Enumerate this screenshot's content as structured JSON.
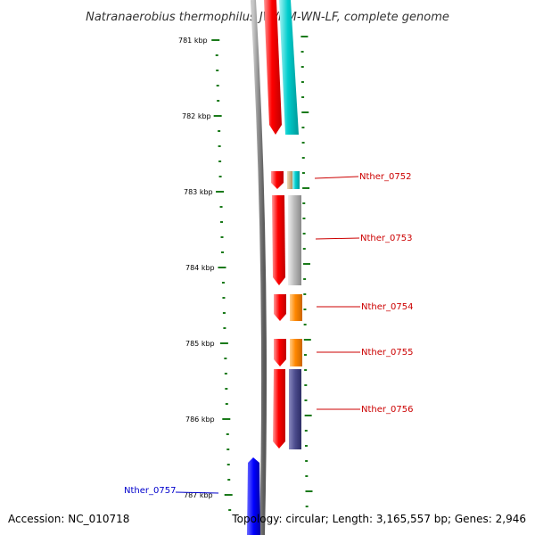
{
  "title": "Natranaerobius thermophilus JW/NM-WN-LF, complete genome",
  "scale_labels": [
    "781 kbp",
    "782 kbp",
    "783 kbp",
    "784 kbp",
    "785 kbp",
    "786 kbp",
    "787 kbp"
  ],
  "genes": [
    {
      "name": "Nther_0752",
      "strand": "forward"
    },
    {
      "name": "Nther_0753",
      "strand": "forward"
    },
    {
      "name": "Nther_0754",
      "strand": "forward"
    },
    {
      "name": "Nther_0755",
      "strand": "forward"
    },
    {
      "name": "Nther_0756",
      "strand": "forward"
    },
    {
      "name": "Nther_0757",
      "strand": "reverse"
    }
  ],
  "footer": {
    "accession": "Accession: NC_010718",
    "topology": "Topology: circular; Length: 3,165,557 bp; Genes: 2,946"
  },
  "colors": {
    "forward_label": "#cc0000",
    "reverse_label": "#0000cc",
    "tick": "#1a7a1a",
    "backbone": "#8c8c8c",
    "cds_red": "#ff0000",
    "cyan": "#00cccc",
    "grey": "#b8b8b8",
    "orange": "#ff8800",
    "purple": "#4b4b8c",
    "tan": "#c8a878",
    "blue": "#0000ff"
  }
}
